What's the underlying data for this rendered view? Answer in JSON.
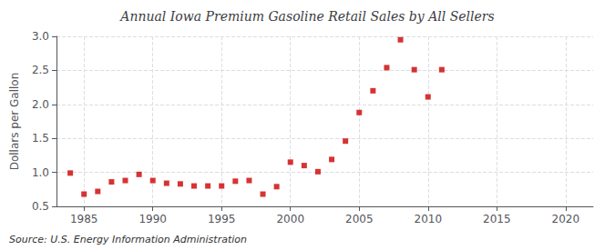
{
  "chart_data": {
    "type": "scatter",
    "title": "Annual Iowa Premium Gasoline Retail Sales by All Sellers",
    "ylabel": "Dollars per Gallon",
    "annotation": "Source: U.S. Energy Information Administration",
    "color": "#cc0000",
    "marker": "square",
    "grid": true,
    "xlim": [
      1983,
      2022
    ],
    "ylim": [
      0.5,
      3.0
    ],
    "xticks": [
      1985,
      1990,
      1995,
      2000,
      2005,
      2010,
      2015,
      2020
    ],
    "yticks": [
      0.5,
      {
        "value": 1.0,
        "label": "1.0"
      },
      1.5,
      {
        "value": 2.0,
        "label": "2.0"
      },
      2.5,
      {
        "value": 3.0,
        "label": "3.0"
      }
    ],
    "x": [
      1984,
      1985,
      1986,
      1987,
      1988,
      1989,
      1990,
      1991,
      1992,
      1993,
      1994,
      1995,
      1996,
      1997,
      1998,
      1999,
      2000,
      2001,
      2002,
      2003,
      2004,
      2005,
      2006,
      2007,
      2008,
      2009,
      2010,
      2011
    ],
    "values": [
      0.99,
      0.68,
      0.72,
      0.86,
      0.88,
      0.97,
      0.88,
      0.84,
      0.83,
      0.8,
      0.8,
      0.8,
      0.87,
      0.88,
      0.68,
      0.79,
      1.15,
      1.1,
      1.01,
      1.19,
      1.46,
      1.88,
      2.2,
      2.54,
      2.95,
      2.51,
      2.11,
      2.51
    ]
  }
}
